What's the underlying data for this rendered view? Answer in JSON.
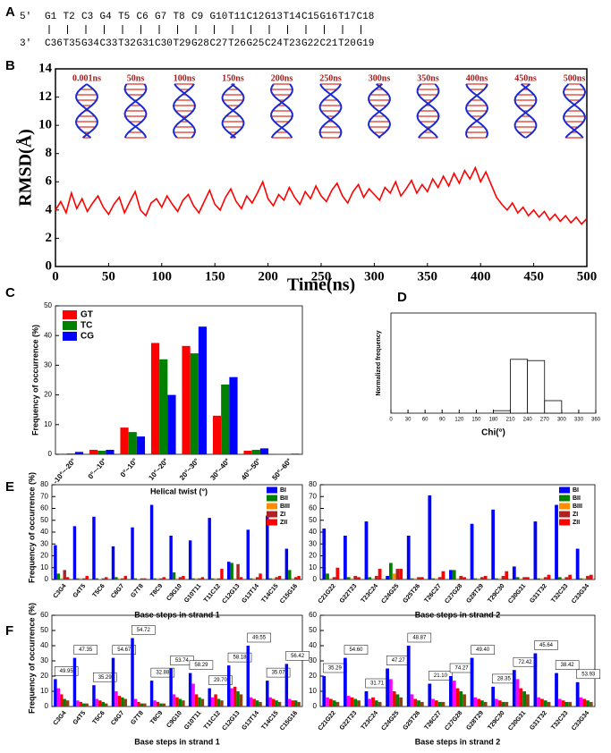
{
  "panel_labels": [
    "A",
    "B",
    "C",
    "D",
    "E",
    "F"
  ],
  "sequence": {
    "end5": "5'",
    "end3": "3'",
    "strand1": [
      "G1",
      "T2",
      "C3",
      "G4",
      "T5",
      "C6",
      "G7",
      "T8",
      "C9",
      "G10",
      "T11",
      "C12",
      "G13",
      "T14",
      "C15",
      "G16",
      "T17",
      "C18"
    ],
    "strand2": [
      "C36",
      "T35",
      "G34",
      "C33",
      "T32",
      "G31",
      "C30",
      "T29",
      "G28",
      "C27",
      "T26",
      "G25",
      "C24",
      "T23",
      "G22",
      "C21",
      "T20",
      "G19"
    ]
  },
  "chart_data": [
    {
      "type": "line",
      "xlabel": "Time(ns)",
      "ylabel": "RMSD(Å)",
      "color": "#ff0000",
      "xlim": [
        0,
        500
      ],
      "xticks": [
        0,
        50,
        100,
        150,
        200,
        250,
        300,
        350,
        400,
        450,
        500
      ],
      "ylim": [
        0,
        14
      ],
      "yticks": [
        0,
        2,
        4,
        6,
        8,
        10,
        12,
        14
      ],
      "annotations": [
        "0.001ns",
        "50ns",
        "100ns",
        "150ns",
        "200ns",
        "250ns",
        "300ns",
        "350ns",
        "400ns",
        "450ns",
        "500ns"
      ],
      "x": [
        0,
        5,
        10,
        15,
        20,
        25,
        30,
        35,
        40,
        45,
        50,
        55,
        60,
        65,
        70,
        75,
        80,
        85,
        90,
        95,
        100,
        105,
        110,
        115,
        120,
        125,
        130,
        135,
        140,
        145,
        150,
        155,
        160,
        165,
        170,
        175,
        180,
        185,
        190,
        195,
        200,
        205,
        210,
        215,
        220,
        225,
        230,
        235,
        240,
        245,
        250,
        255,
        260,
        265,
        270,
        275,
        280,
        285,
        290,
        295,
        300,
        305,
        310,
        315,
        320,
        325,
        330,
        335,
        340,
        345,
        350,
        355,
        360,
        365,
        370,
        375,
        380,
        385,
        390,
        395,
        400,
        405,
        410,
        415,
        420,
        425,
        430,
        435,
        440,
        445,
        450,
        455,
        460,
        465,
        470,
        475,
        480,
        485,
        490,
        495,
        500
      ],
      "values": [
        4.0,
        4.6,
        3.8,
        5.2,
        4.1,
        4.8,
        3.9,
        4.5,
        5.0,
        4.2,
        3.7,
        4.4,
        4.9,
        3.8,
        4.6,
        5.3,
        4.0,
        3.6,
        4.5,
        4.8,
        4.2,
        5.0,
        4.4,
        3.9,
        4.7,
        5.1,
        4.3,
        3.8,
        4.6,
        5.4,
        4.4,
        4.0,
        4.9,
        5.5,
        4.6,
        4.1,
        5.0,
        4.5,
        5.2,
        6.0,
        4.8,
        4.3,
        5.1,
        4.7,
        5.6,
        4.9,
        4.4,
        5.3,
        4.8,
        5.7,
        5.0,
        4.6,
        5.4,
        5.9,
        5.0,
        4.5,
        5.3,
        5.8,
        4.9,
        5.5,
        5.1,
        4.7,
        5.6,
        5.2,
        6.0,
        5.0,
        5.5,
        6.1,
        5.2,
        5.8,
        5.3,
        6.2,
        5.6,
        6.4,
        5.7,
        6.6,
        5.9,
        6.8,
        6.2,
        7.0,
        6.0,
        6.7,
        5.8,
        4.9,
        4.4,
        4.0,
        4.5,
        3.8,
        4.2,
        3.6,
        4.0,
        3.5,
        3.9,
        3.3,
        3.7,
        3.2,
        3.6,
        3.1,
        3.5,
        3.0,
        3.4
      ]
    },
    {
      "type": "bar",
      "xlabel": "Helical twist (°)",
      "ylabel": "Frequency of occurrence (%)",
      "ylim": [
        0,
        50
      ],
      "yticks": [
        0,
        10,
        20,
        30,
        40,
        50
      ],
      "legend": "top-left",
      "categories": [
        "-10°~-20°",
        "0°~-10°",
        "0°~10°",
        "10°~20°",
        "20°~30°",
        "30°~40°",
        "40°~50°",
        "50°~60°"
      ],
      "series": [
        {
          "name": "GT",
          "color": "#ff0000",
          "values": [
            0.2,
            1.5,
            9,
            37.5,
            36.5,
            13,
            1.2,
            0.1
          ]
        },
        {
          "name": "TC",
          "color": "#008000",
          "values": [
            0.3,
            1.2,
            7.5,
            32,
            34,
            23.5,
            1.5,
            0.1
          ]
        },
        {
          "name": "CG",
          "color": "#0000ff",
          "values": [
            0.8,
            1.5,
            6,
            20,
            43,
            26,
            2,
            0.2
          ]
        }
      ]
    },
    {
      "type": "histogram",
      "xlabel": "Chi(°)",
      "ylabel": "Normalized frequency",
      "xlim": [
        0,
        360
      ],
      "xticks": [
        0,
        30,
        60,
        90,
        120,
        150,
        180,
        210,
        240,
        270,
        300,
        330,
        360
      ],
      "ylim": [
        0,
        0.8
      ],
      "bins": [
        180,
        210,
        240,
        270,
        300
      ],
      "values": [
        0.02,
        0.43,
        0.42,
        0.1
      ]
    },
    {
      "type": "bar",
      "xlabel": "Base steps in strand 1",
      "ylabel": "Frequency of occurrence (%)",
      "ylim": [
        0,
        80
      ],
      "yticks": [
        0,
        10,
        20,
        30,
        40,
        50,
        60,
        70,
        80
      ],
      "legend": "top-right",
      "categories": [
        "C3G4",
        "G4T5",
        "T5C6",
        "C6G7",
        "G7T8",
        "T8C9",
        "C9G10",
        "G10T11",
        "T11C12",
        "C12G13",
        "G13T14",
        "T14C15",
        "C15G16"
      ],
      "series": [
        {
          "name": "BI",
          "color": "#0000ff",
          "values": [
            29,
            45,
            53,
            28,
            44,
            63,
            37,
            33,
            52,
            15,
            42,
            54,
            26
          ]
        },
        {
          "name": "BII",
          "color": "#008000",
          "values": [
            5,
            1,
            1,
            2,
            1,
            1,
            6,
            1,
            1,
            14,
            1,
            1,
            8
          ]
        },
        {
          "name": "BIII",
          "color": "#ff8c00",
          "values": [
            1,
            1,
            0.5,
            1,
            0.5,
            1,
            1,
            1,
            1,
            1,
            1,
            1,
            1
          ]
        },
        {
          "name": "ZI",
          "color": "#b22222",
          "values": [
            8,
            1,
            1,
            1,
            1,
            1,
            2,
            1,
            1,
            13,
            2,
            2,
            2
          ]
        },
        {
          "name": "ZII",
          "color": "#ff0000",
          "values": [
            2,
            3,
            2,
            3,
            1,
            2,
            3,
            2,
            9,
            2,
            5,
            3,
            3
          ]
        }
      ]
    },
    {
      "type": "bar",
      "xlabel": "Base steps in strand 2",
      "ylim": [
        0,
        80
      ],
      "yticks": [
        0,
        10,
        20,
        30,
        40,
        50,
        60,
        70,
        80
      ],
      "legend": "top-right",
      "categories": [
        "C21G22",
        "G22T23",
        "T23C24",
        "C24G25",
        "G25T26",
        "T26C27",
        "C27G28",
        "G28T29",
        "T29C30",
        "C30G31",
        "G31T32",
        "T32C33",
        "C33G34"
      ],
      "series": [
        {
          "name": "BI",
          "color": "#0000ff",
          "values": [
            43,
            37,
            49,
            3,
            37,
            71,
            8,
            47,
            59,
            11,
            49,
            63,
            26
          ]
        },
        {
          "name": "BII",
          "color": "#008000",
          "values": [
            5,
            2,
            2,
            14,
            1,
            1,
            8,
            1,
            1,
            2,
            1,
            2,
            1
          ]
        },
        {
          "name": "BIII",
          "color": "#ff8c00",
          "values": [
            1,
            1,
            1,
            5,
            1,
            1,
            1,
            1,
            1,
            1,
            1,
            1,
            1
          ]
        },
        {
          "name": "ZI",
          "color": "#b22222",
          "values": [
            2,
            3,
            3,
            9,
            2,
            2,
            3,
            2,
            3,
            2,
            2,
            2,
            3
          ]
        },
        {
          "name": "ZII",
          "color": "#ff0000",
          "values": [
            10,
            2,
            9,
            9,
            2,
            7,
            2,
            3,
            7,
            2,
            4,
            4,
            4
          ]
        }
      ]
    },
    {
      "type": "bar",
      "xlabel": "Base steps in strand 1",
      "ylabel": "Frequency of occurrence (%)",
      "ylim": [
        0,
        60
      ],
      "yticks": [
        0,
        10,
        20,
        30,
        40,
        50,
        60
      ],
      "categories": [
        "C3G4",
        "G4T5",
        "T5C6",
        "C6G7",
        "G7T8",
        "T8C9",
        "C9G10",
        "G10T11",
        "T11C12",
        "C12G13",
        "G13T14",
        "T14C15",
        "C15G16"
      ],
      "annotations": [
        "49.95",
        "47.35",
        "35.29",
        "54.67",
        "54.72",
        "32.88",
        "53.74",
        "58.29",
        "29.70",
        "58.18",
        "49.55",
        "35.07",
        "56.42"
      ],
      "series": [
        {
          "color": "#0000ff",
          "values": [
            18,
            32,
            14,
            32,
            45,
            17,
            25,
            22,
            12,
            27,
            40,
            17,
            28
          ]
        },
        {
          "color": "#ff00ff",
          "values": [
            12,
            4,
            5,
            10,
            5,
            4,
            8,
            15,
            6,
            12,
            6,
            6,
            5
          ]
        },
        {
          "color": "#ff0000",
          "values": [
            8,
            3,
            4,
            7,
            3,
            3,
            6,
            8,
            8,
            13,
            5,
            5,
            4
          ]
        },
        {
          "color": "#008000",
          "values": [
            5,
            2,
            3,
            6,
            2,
            2,
            5,
            6,
            5,
            10,
            4,
            4,
            4
          ]
        },
        {
          "color": "#8b4513",
          "values": [
            4,
            2,
            2,
            5,
            2,
            2,
            4,
            5,
            4,
            8,
            3,
            3,
            3
          ]
        }
      ]
    },
    {
      "type": "bar",
      "xlabel": "Base steps in strand 2",
      "ylim": [
        0,
        60
      ],
      "yticks": [
        0,
        10,
        20,
        30,
        40,
        50,
        60
      ],
      "categories": [
        "C21G22",
        "G22T23",
        "T23C24",
        "C24G25",
        "G25T26",
        "T26C27",
        "C27G28",
        "G28T29",
        "T29C30",
        "C30G31",
        "G31T32",
        "T32C33",
        "C33G34"
      ],
      "annotations": [
        "35.29",
        "54.60",
        "31.71",
        "47.27",
        "48.87",
        "21.10",
        "74.27",
        "49.40",
        "28.35",
        "72.42",
        "45.64",
        "38.42",
        "53.93"
      ],
      "series": [
        {
          "color": "#0000ff",
          "values": [
            20,
            32,
            10,
            25,
            40,
            15,
            20,
            32,
            13,
            24,
            35,
            22,
            16
          ]
        },
        {
          "color": "#ff00ff",
          "values": [
            6,
            7,
            5,
            18,
            8,
            5,
            17,
            6,
            5,
            18,
            6,
            5,
            6
          ]
        },
        {
          "color": "#ff0000",
          "values": [
            5,
            6,
            6,
            10,
            5,
            4,
            12,
            5,
            4,
            12,
            5,
            4,
            5
          ]
        },
        {
          "color": "#008000",
          "values": [
            4,
            5,
            4,
            8,
            4,
            3,
            10,
            4,
            3,
            10,
            4,
            3,
            4
          ]
        },
        {
          "color": "#8b4513",
          "values": [
            3,
            4,
            3,
            6,
            3,
            3,
            8,
            3,
            3,
            8,
            3,
            3,
            3
          ]
        }
      ]
    }
  ]
}
